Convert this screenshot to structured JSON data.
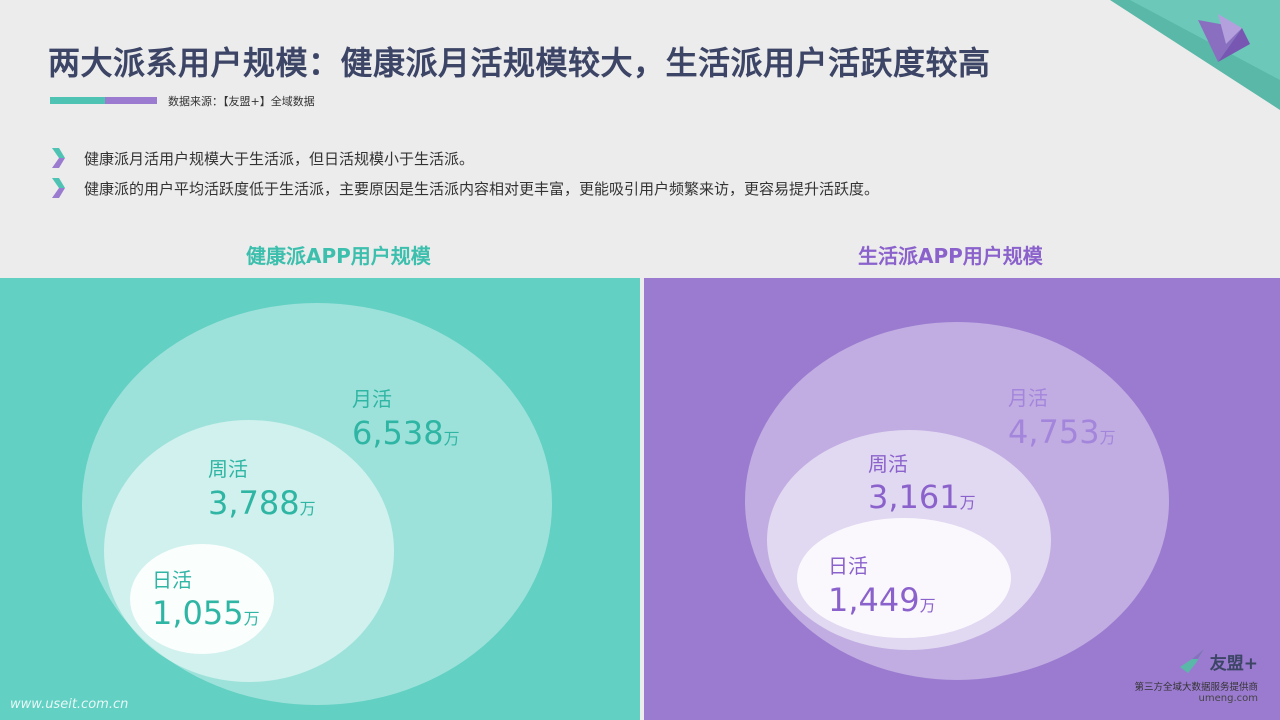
{
  "header": {
    "title": "两大派系用户规模：健康派月活规模较大，生活派用户活跃度较高",
    "source": "数据来源：【友盟+】全域数据"
  },
  "bullets": [
    "健康派月活用户规模大于生活派，但日活规模小于生活派。",
    "健康派的用户平均活跃度低于生活派，主要原因是生活派内容相对更丰富，更能吸引用户频繁来访，更容易提升活跃度。"
  ],
  "panels": {
    "health": {
      "title": "健康派APP用户规模",
      "color": "#62d0c3",
      "title_color": "#3dbfae",
      "mau": {
        "label": "月活",
        "value": "6,538",
        "unit": "万"
      },
      "wau": {
        "label": "周活",
        "value": "3,788",
        "unit": "万"
      },
      "dau": {
        "label": "日活",
        "value": "1,055",
        "unit": "万"
      }
    },
    "life": {
      "title": "生活派APP用户规模",
      "color": "#9b7bd0",
      "title_color": "#8b62cc",
      "mau": {
        "label": "月活",
        "value": "4,753",
        "unit": "万"
      },
      "wau": {
        "label": "周活",
        "value": "3,161",
        "unit": "万"
      },
      "dau": {
        "label": "日活",
        "value": "1,449",
        "unit": "万"
      }
    }
  },
  "logo": {
    "brand": "友盟+",
    "tagline": "第三方全域大数据服务提供商",
    "url": "umeng.com"
  },
  "watermark": "www.useit.com.cn"
}
